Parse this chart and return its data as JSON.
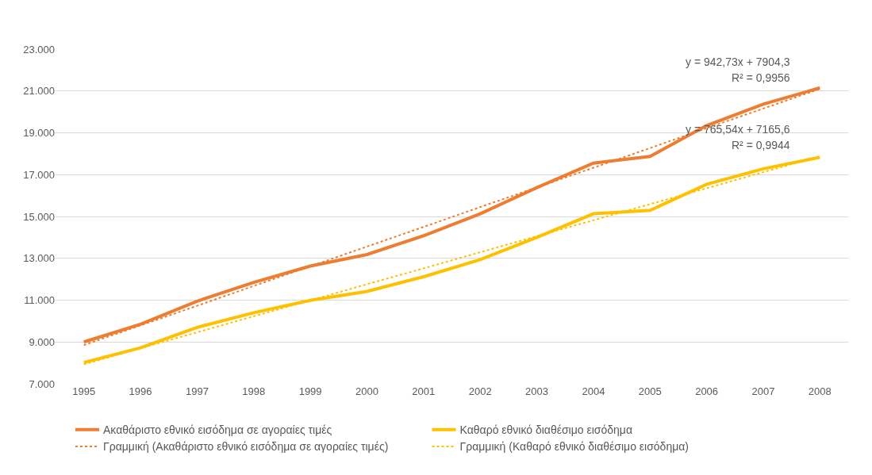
{
  "chart_data": {
    "type": "line",
    "categories": [
      "1995",
      "1996",
      "1997",
      "1998",
      "1999",
      "2000",
      "2001",
      "2002",
      "2003",
      "2004",
      "2005",
      "2006",
      "2007",
      "2008"
    ],
    "series": [
      {
        "name": "Ακαθάριστο εθνικό εισόδημα σε αγοραίες τιμές",
        "color": "#ed7d31",
        "values": [
          9000,
          9850,
          10950,
          11850,
          12630,
          13180,
          14080,
          15130,
          16380,
          17550,
          17870,
          19350,
          20370,
          21150
        ]
      },
      {
        "name": "Καθαρό εθνικό διαθέσιμο εισόδημα",
        "color": "#ffc000",
        "values": [
          8020,
          8720,
          9700,
          10400,
          10990,
          11420,
          12120,
          12940,
          14000,
          15130,
          15290,
          16540,
          17280,
          17830
        ]
      },
      {
        "name": "Γραμμική (Ακαθάριστο εθνικό εισόδημα σε αγοραίες τιμές)",
        "color": "#ed7d31",
        "type": "line",
        "line_style": "dotted",
        "values": [
          8850,
          9790,
          10730,
          11680,
          12620,
          13560,
          14500,
          15450,
          16390,
          17330,
          18270,
          19220,
          20160,
          21100
        ]
      },
      {
        "name": "Γραμμική (Καθαρό εθνικό διαθέσιμο εισόδημα)",
        "color": "#ffc000",
        "type": "line",
        "line_style": "dotted",
        "values": [
          7930,
          8700,
          9460,
          10230,
          10990,
          11760,
          12520,
          13290,
          14060,
          14820,
          15590,
          16350,
          17120,
          17880
        ]
      }
    ],
    "ylim": [
      7000,
      23000
    ],
    "yticks": [
      {
        "value": 7000,
        "label": "7.000"
      },
      {
        "value": 9000,
        "label": "9.000"
      },
      {
        "value": 11000,
        "label": "11.000"
      },
      {
        "value": 13000,
        "label": "13.000"
      },
      {
        "value": 15000,
        "label": "15.000"
      },
      {
        "value": 17000,
        "label": "17.000"
      },
      {
        "value": 19000,
        "label": "19.000"
      },
      {
        "value": 21000,
        "label": "21.000"
      },
      {
        "value": 23000,
        "label": "23.000"
      }
    ],
    "grid": "y",
    "legend": "bottom",
    "line_style": "solid",
    "annotations": [
      "y = 942,73x + 7904,3",
      "R² = 0,9956",
      "y = 765,54x + 7165,6",
      "R² = 0,9944"
    ]
  }
}
